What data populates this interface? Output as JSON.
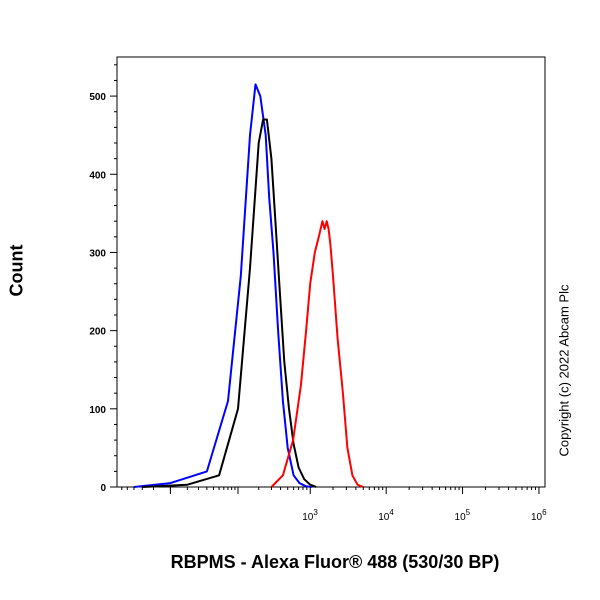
{
  "chart_data": {
    "type": "line",
    "title": "",
    "xlabel": "RBPMS - Alexa Fluor® 488 (530/30 BP)",
    "ylabel": "Count",
    "x_scale": "biexponential",
    "ylim": [
      0,
      550
    ],
    "y_ticks": [
      0,
      100,
      200,
      300,
      400,
      500
    ],
    "x_ticks": [
      {
        "exp": "3",
        "value": 1000
      },
      {
        "exp": "4",
        "value": 10000
      },
      {
        "exp": "5",
        "value": 100000
      },
      {
        "exp": "6",
        "value": 1000000
      }
    ],
    "grid": false,
    "series": [
      {
        "color": "#0000ff",
        "x": [
          -30,
          0,
          30,
          70,
          110,
          150,
          180,
          210,
          250,
          280,
          320,
          370,
          430,
          500,
          600,
          720,
          870,
          1050
        ],
        "y": [
          0,
          5,
          20,
          110,
          270,
          450,
          515,
          500,
          450,
          370,
          300,
          200,
          110,
          50,
          15,
          5,
          1,
          0
        ]
      },
      {
        "color": "#000000",
        "x": [
          -20,
          10,
          50,
          100,
          150,
          200,
          230,
          260,
          300,
          340,
          390,
          450,
          520,
          600,
          700,
          830,
          1000,
          1200
        ],
        "y": [
          0,
          3,
          15,
          100,
          280,
          440,
          470,
          470,
          420,
          340,
          250,
          160,
          100,
          55,
          25,
          10,
          3,
          0
        ]
      },
      {
        "color": "#ff0000",
        "x": [
          300,
          430,
          590,
          750,
          880,
          1000,
          1150,
          1300,
          1450,
          1550,
          1650,
          1750,
          1850,
          2000,
          2300,
          2700,
          3100,
          3600,
          4200,
          5000
        ],
        "y": [
          0,
          15,
          60,
          130,
          200,
          260,
          300,
          320,
          340,
          330,
          340,
          330,
          310,
          270,
          190,
          120,
          50,
          15,
          3,
          0
        ]
      }
    ],
    "annotation": "Copyright (c) 2022 Abcam Plc"
  }
}
